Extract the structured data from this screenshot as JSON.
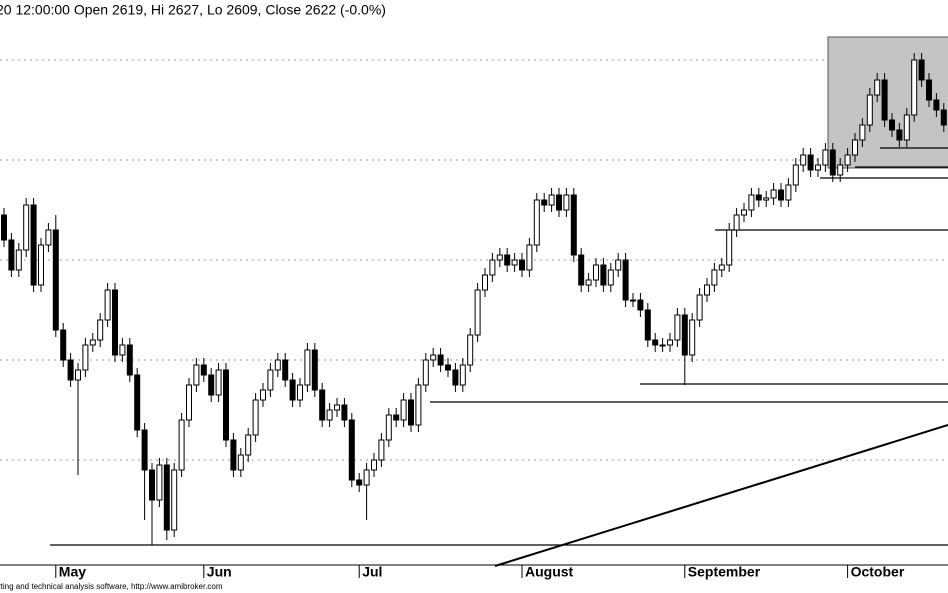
{
  "chart_data": {
    "type": "candlestick",
    "title": "20 12:00:00 Open 2619, Hi 2627, Lo 2609, Close 2622 (-0.0%)",
    "footer": "rting and technical analysis software, http://www.amibroker.com",
    "categories": [
      null,
      null,
      null,
      null,
      null,
      null,
      null,
      "May",
      null,
      null,
      null,
      null,
      null,
      null,
      null,
      null,
      null,
      null,
      null,
      null,
      null,
      null,
      null,
      null,
      null,
      null,
      null,
      "Jun",
      null,
      null,
      null,
      null,
      null,
      null,
      null,
      null,
      null,
      null,
      null,
      null,
      null,
      null,
      null,
      null,
      null,
      null,
      null,
      null,
      "Jul",
      null,
      null,
      null,
      null,
      null,
      null,
      null,
      null,
      null,
      null,
      null,
      null,
      null,
      null,
      null,
      null,
      null,
      null,
      null,
      null,
      null,
      "August",
      null,
      null,
      null,
      null,
      null,
      null,
      null,
      null,
      null,
      null,
      null,
      null,
      null,
      null,
      null,
      null,
      null,
      null,
      null,
      null,
      null,
      "September",
      null,
      null,
      null,
      null,
      null,
      null,
      null,
      null,
      null,
      null,
      null,
      null,
      null,
      null,
      null,
      null,
      null,
      null,
      null,
      null,
      null,
      "October",
      null,
      null,
      null,
      null,
      null,
      null,
      null,
      null,
      null,
      null,
      null,
      null,
      null
    ],
    "open": [
      2485,
      2460,
      2430,
      2450,
      2495,
      2415,
      2455,
      2470,
      2370,
      2340,
      2320,
      2330,
      2355,
      2360,
      2380,
      2410,
      2345,
      2355,
      2325,
      2270,
      2230,
      2200,
      2235,
      2170,
      2230,
      2280,
      2315,
      2335,
      2325,
      2305,
      2330,
      2260,
      2230,
      2245,
      2265,
      2300,
      2310,
      2330,
      2340,
      2320,
      2300,
      2315,
      2350,
      2310,
      2280,
      2290,
      2295,
      2280,
      2220,
      2215,
      2230,
      2240,
      2260,
      2285,
      2280,
      2300,
      2275,
      2315,
      2340,
      2345,
      2335,
      2330,
      2315,
      2335,
      2365,
      2410,
      2425,
      2440,
      2445,
      2435,
      2440,
      2430,
      2455,
      2500,
      2495,
      2505,
      2490,
      2505,
      2445,
      2415,
      2420,
      2435,
      2415,
      2430,
      2440,
      2400,
      2400,
      2390,
      2360,
      2355,
      2355,
      2360,
      2385,
      2345,
      2380,
      2405,
      2415,
      2430,
      2435,
      2470,
      2485,
      2490,
      2505,
      2500,
      2502,
      2510,
      2500,
      2515,
      2535,
      2545,
      2530,
      2535,
      2550,
      2525,
      2535,
      2545,
      2560,
      2575,
      2605,
      2620,
      2580,
      2570,
      2560,
      2585,
      2640,
      2620,
      2600,
      2590
    ],
    "high": [
      2492,
      2467,
      2457,
      2502,
      2502,
      2462,
      2477,
      2485,
      2377,
      2347,
      2337,
      2362,
      2367,
      2387,
      2417,
      2417,
      2362,
      2362,
      2332,
      2277,
      2237,
      2242,
      2242,
      2237,
      2287,
      2322,
      2342,
      2342,
      2332,
      2337,
      2337,
      2267,
      2252,
      2272,
      2307,
      2317,
      2337,
      2347,
      2347,
      2327,
      2322,
      2357,
      2357,
      2317,
      2297,
      2302,
      2302,
      2287,
      2227,
      2237,
      2247,
      2267,
      2292,
      2292,
      2307,
      2307,
      2322,
      2347,
      2352,
      2352,
      2342,
      2337,
      2342,
      2372,
      2417,
      2432,
      2447,
      2452,
      2452,
      2447,
      2447,
      2462,
      2507,
      2507,
      2512,
      2512,
      2512,
      2512,
      2452,
      2427,
      2442,
      2442,
      2437,
      2447,
      2447,
      2407,
      2407,
      2397,
      2367,
      2362,
      2367,
      2392,
      2392,
      2387,
      2412,
      2422,
      2437,
      2442,
      2477,
      2492,
      2497,
      2512,
      2512,
      2509,
      2517,
      2517,
      2522,
      2542,
      2552,
      2552,
      2542,
      2557,
      2557,
      2542,
      2552,
      2567,
      2582,
      2612,
      2627,
      2627,
      2587,
      2577,
      2592,
      2647,
      2647,
      2627,
      2607,
      2597
    ],
    "low": [
      2453,
      2423,
      2423,
      2443,
      2408,
      2408,
      2448,
      2363,
      2333,
      2313,
      2225,
      2323,
      2348,
      2353,
      2373,
      2338,
      2338,
      2318,
      2263,
      2180,
      2155,
      2193,
      2160,
      2163,
      2223,
      2273,
      2308,
      2318,
      2298,
      2298,
      2253,
      2223,
      2223,
      2238,
      2258,
      2293,
      2303,
      2323,
      2313,
      2293,
      2293,
      2308,
      2303,
      2273,
      2273,
      2283,
      2273,
      2213,
      2208,
      2180,
      2223,
      2233,
      2253,
      2273,
      2273,
      2268,
      2268,
      2308,
      2333,
      2328,
      2323,
      2308,
      2308,
      2328,
      2358,
      2403,
      2418,
      2433,
      2428,
      2428,
      2423,
      2423,
      2448,
      2488,
      2488,
      2483,
      2483,
      2438,
      2408,
      2408,
      2413,
      2408,
      2408,
      2423,
      2393,
      2393,
      2383,
      2353,
      2348,
      2348,
      2348,
      2353,
      2315,
      2338,
      2373,
      2398,
      2408,
      2423,
      2428,
      2463,
      2478,
      2483,
      2493,
      2493,
      2495,
      2493,
      2493,
      2508,
      2528,
      2523,
      2523,
      2528,
      2518,
      2518,
      2528,
      2538,
      2553,
      2568,
      2598,
      2573,
      2563,
      2553,
      2553,
      2578,
      2613,
      2593,
      2583,
      2568
    ],
    "close": [
      2460,
      2430,
      2450,
      2495,
      2415,
      2455,
      2470,
      2370,
      2340,
      2320,
      2330,
      2355,
      2360,
      2380,
      2410,
      2345,
      2355,
      2325,
      2270,
      2230,
      2200,
      2235,
      2170,
      2230,
      2280,
      2315,
      2335,
      2325,
      2305,
      2330,
      2260,
      2230,
      2245,
      2265,
      2300,
      2310,
      2330,
      2340,
      2320,
      2300,
      2315,
      2350,
      2310,
      2280,
      2290,
      2295,
      2280,
      2220,
      2215,
      2230,
      2240,
      2260,
      2285,
      2280,
      2300,
      2275,
      2315,
      2340,
      2345,
      2335,
      2330,
      2315,
      2335,
      2365,
      2410,
      2425,
      2440,
      2445,
      2435,
      2440,
      2430,
      2455,
      2500,
      2495,
      2505,
      2490,
      2505,
      2445,
      2415,
      2420,
      2435,
      2415,
      2430,
      2440,
      2400,
      2400,
      2390,
      2360,
      2355,
      2355,
      2360,
      2385,
      2345,
      2380,
      2405,
      2415,
      2430,
      2435,
      2470,
      2485,
      2490,
      2505,
      2500,
      2502,
      2510,
      2500,
      2515,
      2535,
      2545,
      2530,
      2535,
      2550,
      2525,
      2535,
      2545,
      2560,
      2575,
      2605,
      2620,
      2580,
      2570,
      2560,
      2585,
      2640,
      2620,
      2600,
      2590,
      2575
    ],
    "ylim": [
      2135,
      2680
    ],
    "yticks": [
      2240,
      2340,
      2440,
      2540,
      2640
    ],
    "grid": true,
    "up_color": "#ffffff",
    "down_color": "#000000"
  }
}
